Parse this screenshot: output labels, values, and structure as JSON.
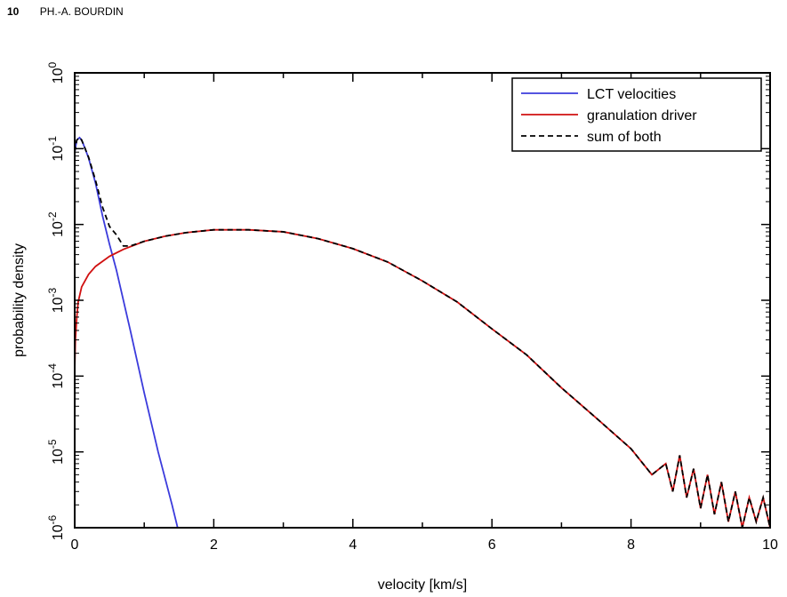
{
  "header": {
    "page_number": "10",
    "author": "PH.-A. BOURDIN"
  },
  "chart_data": {
    "type": "line",
    "title": "",
    "xlabel": "velocity [km/s]",
    "ylabel": "probability density",
    "xlim": [
      0,
      10
    ],
    "ylim": [
      1e-06,
      1
    ],
    "yscale": "log",
    "x_ticks": [
      "0",
      "2",
      "4",
      "6",
      "8",
      "10"
    ],
    "y_ticks": [
      {
        "base": "10",
        "exp": "0"
      },
      {
        "base": "10",
        "exp": "-1"
      },
      {
        "base": "10",
        "exp": "-2"
      },
      {
        "base": "10",
        "exp": "-3"
      },
      {
        "base": "10",
        "exp": "-4"
      },
      {
        "base": "10",
        "exp": "-5"
      },
      {
        "base": "10",
        "exp": "-6"
      }
    ],
    "legend": {
      "position": "top-right"
    },
    "series": [
      {
        "name": "LCT velocities",
        "color": "#3b3bdc",
        "dash": "solid",
        "x": [
          0.0,
          0.03,
          0.07,
          0.1,
          0.15,
          0.2,
          0.3,
          0.4,
          0.5,
          0.6,
          0.8,
          1.0,
          1.2,
          1.4,
          1.48
        ],
        "y": [
          0.09,
          0.13,
          0.14,
          0.13,
          0.1,
          0.075,
          0.035,
          0.013,
          0.0055,
          0.0025,
          0.0004,
          6e-05,
          1e-05,
          2e-06,
          1e-06
        ]
      },
      {
        "name": "granulation driver",
        "color": "#d01010",
        "dash": "solid",
        "x": [
          0.0,
          0.01,
          0.03,
          0.05,
          0.1,
          0.2,
          0.3,
          0.5,
          0.7,
          1.0,
          1.3,
          1.6,
          2.0,
          2.5,
          3.0,
          3.5,
          4.0,
          4.5,
          5.0,
          5.5,
          6.0,
          6.5,
          7.0,
          7.5,
          8.0,
          8.3,
          8.5,
          8.6,
          8.7,
          8.8,
          8.9,
          9.0,
          9.1,
          9.2,
          9.3,
          9.4,
          9.5,
          9.6,
          9.7,
          9.8,
          9.9,
          10.0
        ],
        "y": [
          0.00012,
          0.0003,
          0.0006,
          0.00095,
          0.0015,
          0.0022,
          0.0028,
          0.0038,
          0.0047,
          0.006,
          0.007,
          0.0078,
          0.0085,
          0.0085,
          0.008,
          0.0065,
          0.0048,
          0.0032,
          0.0018,
          0.00095,
          0.00042,
          0.00019,
          7e-05,
          2.8e-05,
          1.1e-05,
          5e-06,
          7e-06,
          3e-06,
          9e-06,
          2.5e-06,
          6e-06,
          1.8e-06,
          5e-06,
          1.5e-06,
          4e-06,
          1.2e-06,
          3e-06,
          1e-06,
          2.5e-06,
          1.2e-06,
          2.5e-06,
          1e-06
        ]
      },
      {
        "name": "sum of both",
        "color": "#000000",
        "dash": "dashed",
        "x": [
          0.0,
          0.03,
          0.07,
          0.1,
          0.15,
          0.2,
          0.3,
          0.4,
          0.5,
          0.6,
          0.7,
          0.8,
          1.0,
          1.3,
          1.6,
          2.0,
          2.5,
          3.0,
          3.5,
          4.0,
          4.5,
          5.0,
          5.5,
          6.0,
          6.5,
          7.0,
          7.5,
          8.0,
          8.3,
          8.5,
          8.6,
          8.7,
          8.8,
          8.9,
          9.0,
          9.1,
          9.2,
          9.3,
          9.4,
          9.5,
          9.6,
          9.7,
          9.8,
          9.9,
          10.0
        ],
        "y": [
          0.09,
          0.13,
          0.14,
          0.13,
          0.1,
          0.077,
          0.038,
          0.017,
          0.0094,
          0.0073,
          0.0052,
          0.0052,
          0.006,
          0.007,
          0.0078,
          0.0085,
          0.0085,
          0.008,
          0.0065,
          0.0048,
          0.0032,
          0.0018,
          0.00095,
          0.00042,
          0.00019,
          7e-05,
          2.8e-05,
          1.1e-05,
          5e-06,
          7e-06,
          3e-06,
          9e-06,
          2.5e-06,
          6e-06,
          1.8e-06,
          5e-06,
          1.5e-06,
          4e-06,
          1.2e-06,
          3e-06,
          1e-06,
          2.5e-06,
          1.2e-06,
          2.5e-06,
          1e-06
        ]
      }
    ]
  }
}
